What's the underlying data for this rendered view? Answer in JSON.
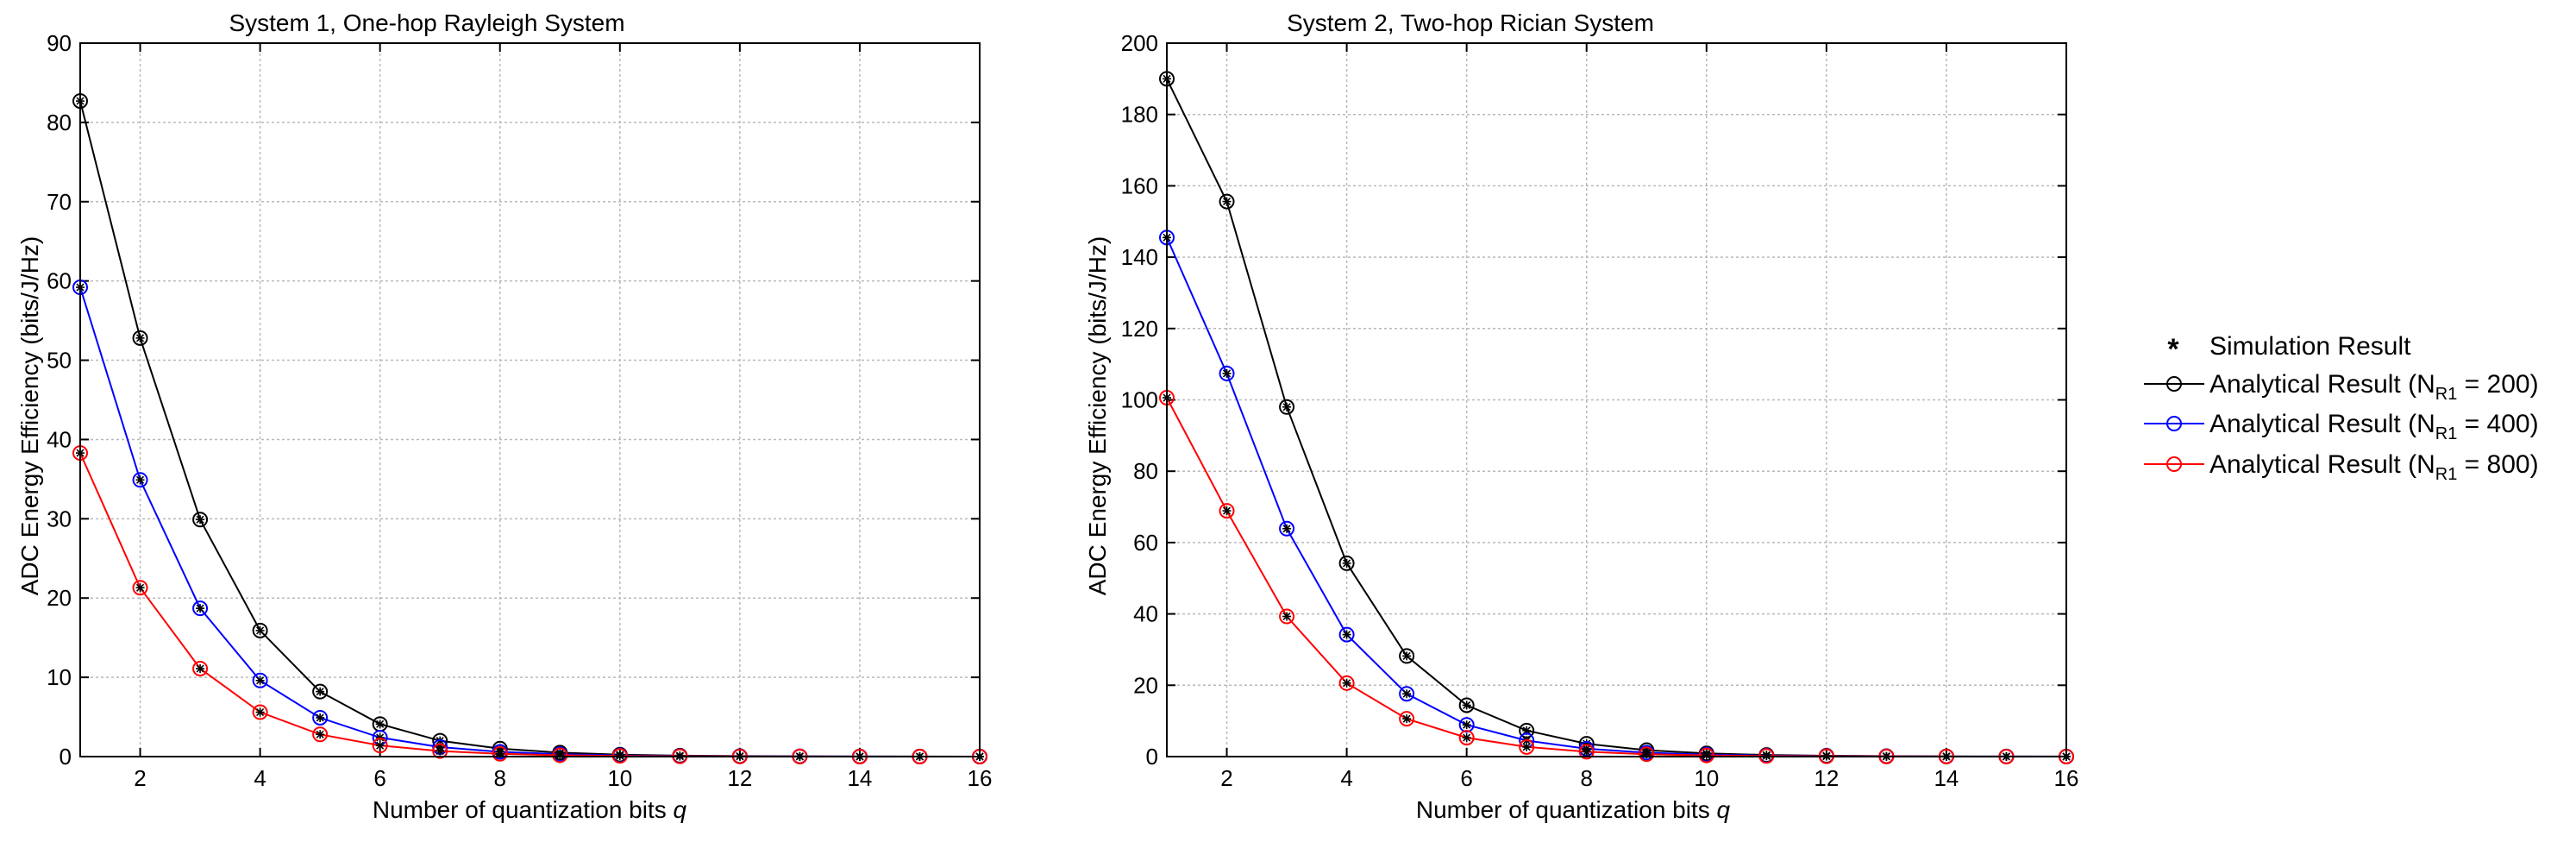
{
  "chart_data": [
    {
      "type": "line",
      "title": "System 1, One-hop Rayleigh System",
      "xlabel": "Number of quantization bits",
      "xlabel_var": "q",
      "ylabel": "ADC Energy Efficiency (bits/J/Hz)",
      "xlim": [
        1,
        16
      ],
      "ylim": [
        0,
        90
      ],
      "xticks": [
        "2",
        "4",
        "6",
        "8",
        "10",
        "12",
        "14",
        "16"
      ],
      "yticks": [
        "0",
        "10",
        "20",
        "30",
        "40",
        "50",
        "60",
        "70",
        "80",
        "90"
      ],
      "grid": true,
      "x": [
        1,
        2,
        3,
        4,
        5,
        6,
        7,
        8,
        9,
        10,
        11,
        12,
        13,
        14,
        15,
        16
      ],
      "series": [
        {
          "name": "Analytical Result (N_R1 = 200)",
          "color": "#000000",
          "values": [
            82.7,
            52.8,
            29.9,
            15.9,
            8.2,
            4.1,
            2.0,
            1.0,
            0.5,
            0.25,
            0.12,
            0.06,
            0.03,
            0.015,
            0.008,
            0.004
          ]
        },
        {
          "name": "Analytical Result (N_R1 = 400)",
          "color": "#0000ff",
          "values": [
            59.2,
            34.9,
            18.7,
            9.6,
            4.9,
            2.4,
            1.2,
            0.6,
            0.3,
            0.15,
            0.07,
            0.04,
            0.02,
            0.01,
            0.005,
            0.002
          ]
        },
        {
          "name": "Analytical Result (N_R1 = 800)",
          "color": "#ff0000",
          "values": [
            38.3,
            21.3,
            11.1,
            5.6,
            2.8,
            1.4,
            0.7,
            0.35,
            0.17,
            0.09,
            0.04,
            0.02,
            0.01,
            0.005,
            0.003,
            0.001
          ]
        }
      ]
    },
    {
      "type": "line",
      "title": "System 2, Two-hop Rician System",
      "xlabel": "Number of quantization bits",
      "xlabel_var": "q",
      "ylabel": "ADC Energy Efficiency (bits/J/Hz)",
      "xlim": [
        1,
        16
      ],
      "ylim": [
        0,
        200
      ],
      "xticks": [
        "2",
        "4",
        "6",
        "8",
        "10",
        "12",
        "14",
        "16"
      ],
      "yticks": [
        "0",
        "20",
        "40",
        "60",
        "80",
        "100",
        "120",
        "140",
        "160",
        "180",
        "200"
      ],
      "grid": true,
      "x": [
        1,
        2,
        3,
        4,
        5,
        6,
        7,
        8,
        9,
        10,
        11,
        12,
        13,
        14,
        15,
        16
      ],
      "series": [
        {
          "name": "Analytical Result (N_R1 = 200)",
          "color": "#000000",
          "values": [
            190,
            155.6,
            98,
            54.2,
            28.2,
            14.4,
            7.3,
            3.6,
            1.8,
            0.9,
            0.45,
            0.23,
            0.11,
            0.06,
            0.03,
            0.015
          ]
        },
        {
          "name": "Analytical Result (N_R1 = 400)",
          "color": "#0000ff",
          "values": [
            145.5,
            107.4,
            63.9,
            34.2,
            17.6,
            8.9,
            4.5,
            2.2,
            1.1,
            0.56,
            0.28,
            0.14,
            0.07,
            0.035,
            0.018,
            0.009
          ]
        },
        {
          "name": "Analytical Result (N_R1 = 800)",
          "color": "#ff0000",
          "values": [
            100.6,
            68.9,
            39.3,
            20.6,
            10.6,
            5.3,
            2.7,
            1.35,
            0.68,
            0.34,
            0.17,
            0.085,
            0.04,
            0.02,
            0.01,
            0.005
          ]
        }
      ]
    }
  ],
  "legend": {
    "placement": "right",
    "entries": [
      {
        "marker": "asterisk",
        "color": "#000000",
        "text": "Simulation Result"
      },
      {
        "marker": "circle-line",
        "color": "#000000",
        "prefix": "Analytical Result (N",
        "sub": "R1",
        "suffix": " = 200)"
      },
      {
        "marker": "circle-line",
        "color": "#0000ff",
        "prefix": "Analytical Result (N",
        "sub": "R1",
        "suffix": " = 400)"
      },
      {
        "marker": "circle-line",
        "color": "#ff0000",
        "prefix": "Analytical Result (N",
        "sub": "R1",
        "suffix": " = 800)"
      }
    ]
  }
}
